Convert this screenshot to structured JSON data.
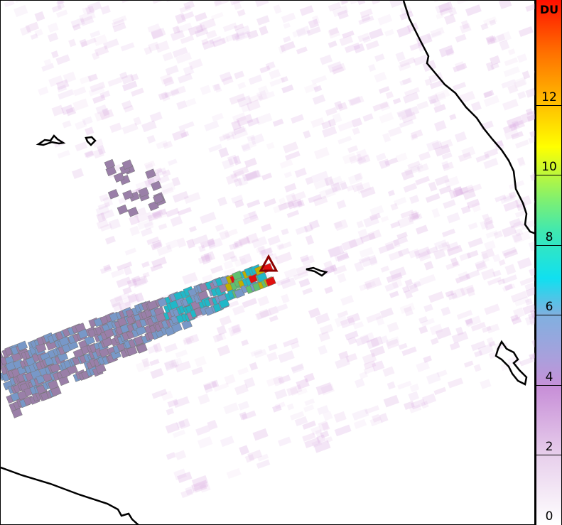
{
  "colorbar": {
    "unit": "DU",
    "ticks": [
      "0",
      "2",
      "4",
      "6",
      "8",
      "10",
      "12"
    ],
    "range": [
      0,
      15
    ],
    "colors": [
      "#ffffff",
      "#e8d0ec",
      "#c890d8",
      "#8fa8e0",
      "#10e0f0",
      "#60e890",
      "#ffff00",
      "#ffa000",
      "#ff0000"
    ]
  },
  "map": {
    "marker": "volcano-triangle-icon",
    "marker_color": "#8b0000",
    "coastline_color": "#000000"
  }
}
